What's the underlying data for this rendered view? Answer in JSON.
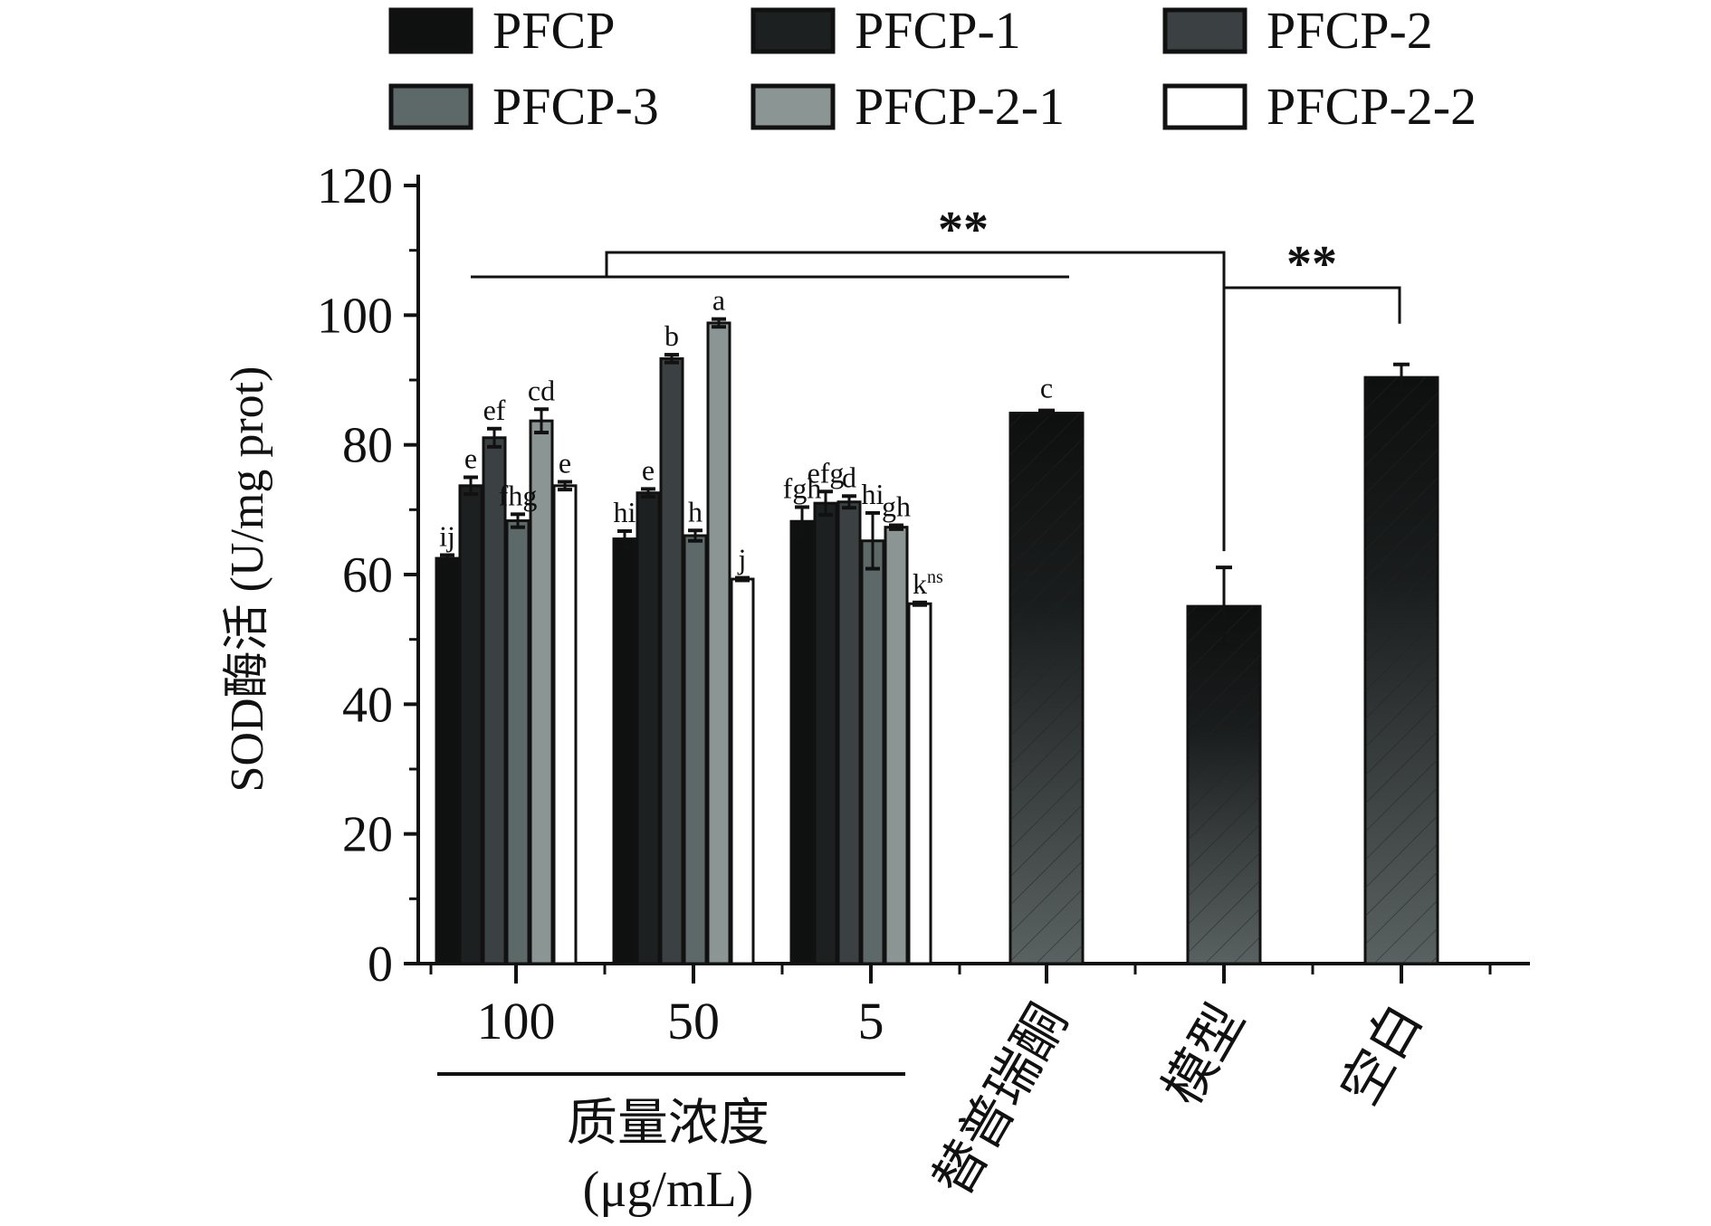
{
  "chart_data": {
    "type": "bar",
    "title": "",
    "ylabel": "SOD酶活 (U/mg prot)",
    "xlabel": "质量浓度 (μg/mL)",
    "xlabel_lines": [
      "质量浓度",
      "(μg/mL)"
    ],
    "ylim": [
      0,
      120
    ],
    "yticks": [
      0,
      20,
      40,
      60,
      80,
      100,
      120
    ],
    "grid": false,
    "legend_position": "top",
    "series": [
      {
        "name": "PFCP",
        "color": "#0f1110",
        "values": [
          62.5,
          65.5,
          68.2
        ],
        "errors": [
          0.5,
          1.2,
          2.2
        ],
        "letters": [
          "ij",
          "hi",
          "fgh"
        ]
      },
      {
        "name": "PFCP-1",
        "color": "#1d2020",
        "values": [
          73.7,
          72.6,
          71.0
        ],
        "errors": [
          1.3,
          0.6,
          1.8
        ],
        "letters": [
          "e",
          "e",
          "efg"
        ]
      },
      {
        "name": "PFCP-2",
        "color": "#3b4142",
        "values": [
          81.1,
          93.3,
          71.2
        ],
        "errors": [
          1.4,
          0.6,
          0.9
        ],
        "letters": [
          "ef",
          "b",
          "d"
        ]
      },
      {
        "name": "PFCP-3",
        "color": "#5d6968",
        "values": [
          68.3,
          66.0,
          65.2
        ],
        "errors": [
          1.0,
          0.8,
          4.3
        ],
        "letters": [
          "fhg",
          "h",
          "hi"
        ]
      },
      {
        "name": "PFCP-2-1",
        "color": "#8a9594",
        "values": [
          83.7,
          98.8,
          67.3
        ],
        "errors": [
          1.8,
          0.6,
          0.3
        ],
        "letters": [
          "cd",
          "a",
          "gh"
        ]
      },
      {
        "name": "PFCP-2-2",
        "color": "#ffffff",
        "values": [
          73.7,
          59.3,
          55.5
        ],
        "errors": [
          0.6,
          0.2,
          0.2
        ],
        "letters": [
          "e",
          "j",
          "k"
        ]
      }
    ],
    "categories": [
      "100",
      "50",
      "5"
    ],
    "superscript_note": {
      "letter": "k",
      "sup": "ns"
    },
    "ghost_label": "h",
    "single_bars": [
      {
        "category": "替普瑞酮",
        "value": 84.9,
        "error": 0.4,
        "letter": "c"
      },
      {
        "category": "模型",
        "value": 55.1,
        "error": 6.0,
        "letter": ""
      },
      {
        "category": "空白",
        "value": 90.4,
        "error": 2.0,
        "letter": ""
      }
    ],
    "significance": [
      {
        "from": "PFCP groups + 替普瑞酮",
        "to": "模型",
        "label": "**"
      },
      {
        "from": "模型",
        "to": "空白",
        "label": "**"
      }
    ]
  }
}
